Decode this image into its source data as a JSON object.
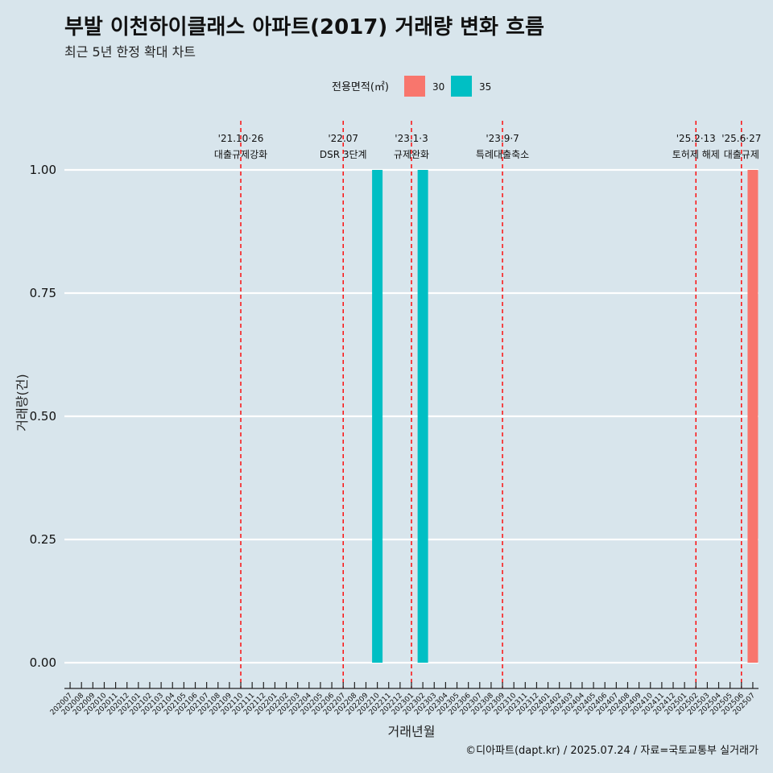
{
  "chart_data": {
    "type": "bar",
    "title": "부발 이천하이클래스 아파트(2017) 거래량 변화 흐름",
    "subtitle": "최근 5년 한정 확대 차트",
    "xlabel": "거래년월",
    "ylabel": "거래량(건)",
    "ylim": [
      0,
      1
    ],
    "yticks": [
      "0.00",
      "0.25",
      "0.50",
      "0.75",
      "1.00"
    ],
    "legend": {
      "title": "전용면적(㎡)",
      "position": "top"
    },
    "categories": [
      "202007",
      "202008",
      "202009",
      "202010",
      "202011",
      "202012",
      "202101",
      "202102",
      "202103",
      "202104",
      "202105",
      "202106",
      "202107",
      "202108",
      "202109",
      "202110",
      "202111",
      "202112",
      "202201",
      "202202",
      "202203",
      "202204",
      "202205",
      "202206",
      "202207",
      "202208",
      "202209",
      "202210",
      "202211",
      "202212",
      "202301",
      "202302",
      "202303",
      "202304",
      "202305",
      "202306",
      "202307",
      "202308",
      "202309",
      "202310",
      "202311",
      "202312",
      "202401",
      "202402",
      "202403",
      "202404",
      "202405",
      "202406",
      "202407",
      "202408",
      "202409",
      "202410",
      "202411",
      "202412",
      "202501",
      "202502",
      "202503",
      "202504",
      "202505",
      "202506",
      "202507"
    ],
    "series": [
      {
        "name": "30",
        "color": "#f8766d",
        "points": [
          {
            "x": "202507",
            "y": 1
          }
        ]
      },
      {
        "name": "35",
        "color": "#00bfc4",
        "points": [
          {
            "x": "202210",
            "y": 1
          },
          {
            "x": "202302",
            "y": 1
          }
        ]
      }
    ],
    "annotations": [
      {
        "x": "202110",
        "date": "'21.10·26",
        "label": "대출규제강화"
      },
      {
        "x": "202207",
        "date": "'22.07",
        "label": "DSR 3단계"
      },
      {
        "x": "202301",
        "date": "'23.1·3",
        "label": "규제완화"
      },
      {
        "x": "202309",
        "date": "'23.9·7",
        "label": "특례대출축소"
      },
      {
        "x": "202502",
        "date": "'25.2·13",
        "label": "토허제 해제"
      },
      {
        "x": "202506",
        "date": "'25.6·27",
        "label": "대출규제"
      }
    ],
    "annotation_color": "#ff0000",
    "grid": true,
    "caption": "©디아파트(dapt.kr) / 2025.07.24 / 자료=국토교통부 실거래가"
  }
}
